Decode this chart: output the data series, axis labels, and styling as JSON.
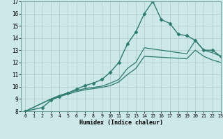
{
  "xlabel": "Humidex (Indice chaleur)",
  "background_color": "#cce8e8",
  "grid_color": "#b0c8c8",
  "line_color": "#2d7a6e",
  "xlim": [
    -0.5,
    23
  ],
  "ylim": [
    8,
    17
  ],
  "xticks": [
    0,
    1,
    2,
    3,
    4,
    5,
    6,
    7,
    8,
    9,
    10,
    11,
    12,
    13,
    14,
    15,
    16,
    17,
    18,
    19,
    20,
    21,
    22,
    23
  ],
  "yticks": [
    8,
    9,
    10,
    11,
    12,
    13,
    14,
    15,
    16,
    17
  ],
  "series": [
    {
      "x": [
        0,
        2,
        3,
        4,
        5,
        6,
        7,
        8,
        9,
        10,
        11,
        12,
        13,
        14,
        15,
        16,
        17,
        18,
        19,
        20,
        21,
        22,
        23
      ],
      "y": [
        8,
        8.3,
        8.9,
        9.2,
        9.5,
        9.8,
        10.1,
        10.3,
        10.6,
        11.2,
        12.0,
        13.5,
        14.5,
        16.0,
        17.0,
        15.5,
        15.2,
        14.3,
        14.2,
        13.8,
        13.0,
        13.0,
        12.5
      ],
      "marker": "D",
      "markersize": 2.5,
      "linewidth": 1.0,
      "linestyle": "-"
    },
    {
      "x": [
        0,
        3,
        4,
        5,
        6,
        7,
        8,
        9,
        10,
        11,
        12,
        13,
        14,
        19,
        20,
        21,
        22,
        23
      ],
      "y": [
        8,
        9.0,
        9.3,
        9.5,
        9.7,
        9.85,
        9.95,
        10.05,
        10.3,
        10.6,
        11.5,
        12.0,
        13.2,
        12.7,
        13.8,
        13.0,
        12.8,
        12.5
      ],
      "marker": null,
      "markersize": 0,
      "linewidth": 0.9,
      "linestyle": "-"
    },
    {
      "x": [
        0,
        3,
        4,
        5,
        6,
        7,
        8,
        9,
        10,
        11,
        12,
        13,
        14,
        19,
        20,
        21,
        22,
        23
      ],
      "y": [
        8,
        9.0,
        9.2,
        9.4,
        9.6,
        9.75,
        9.85,
        9.95,
        10.1,
        10.4,
        11.0,
        11.5,
        12.5,
        12.3,
        13.0,
        12.5,
        12.2,
        12.0
      ],
      "marker": null,
      "markersize": 0,
      "linewidth": 0.9,
      "linestyle": "-"
    }
  ]
}
